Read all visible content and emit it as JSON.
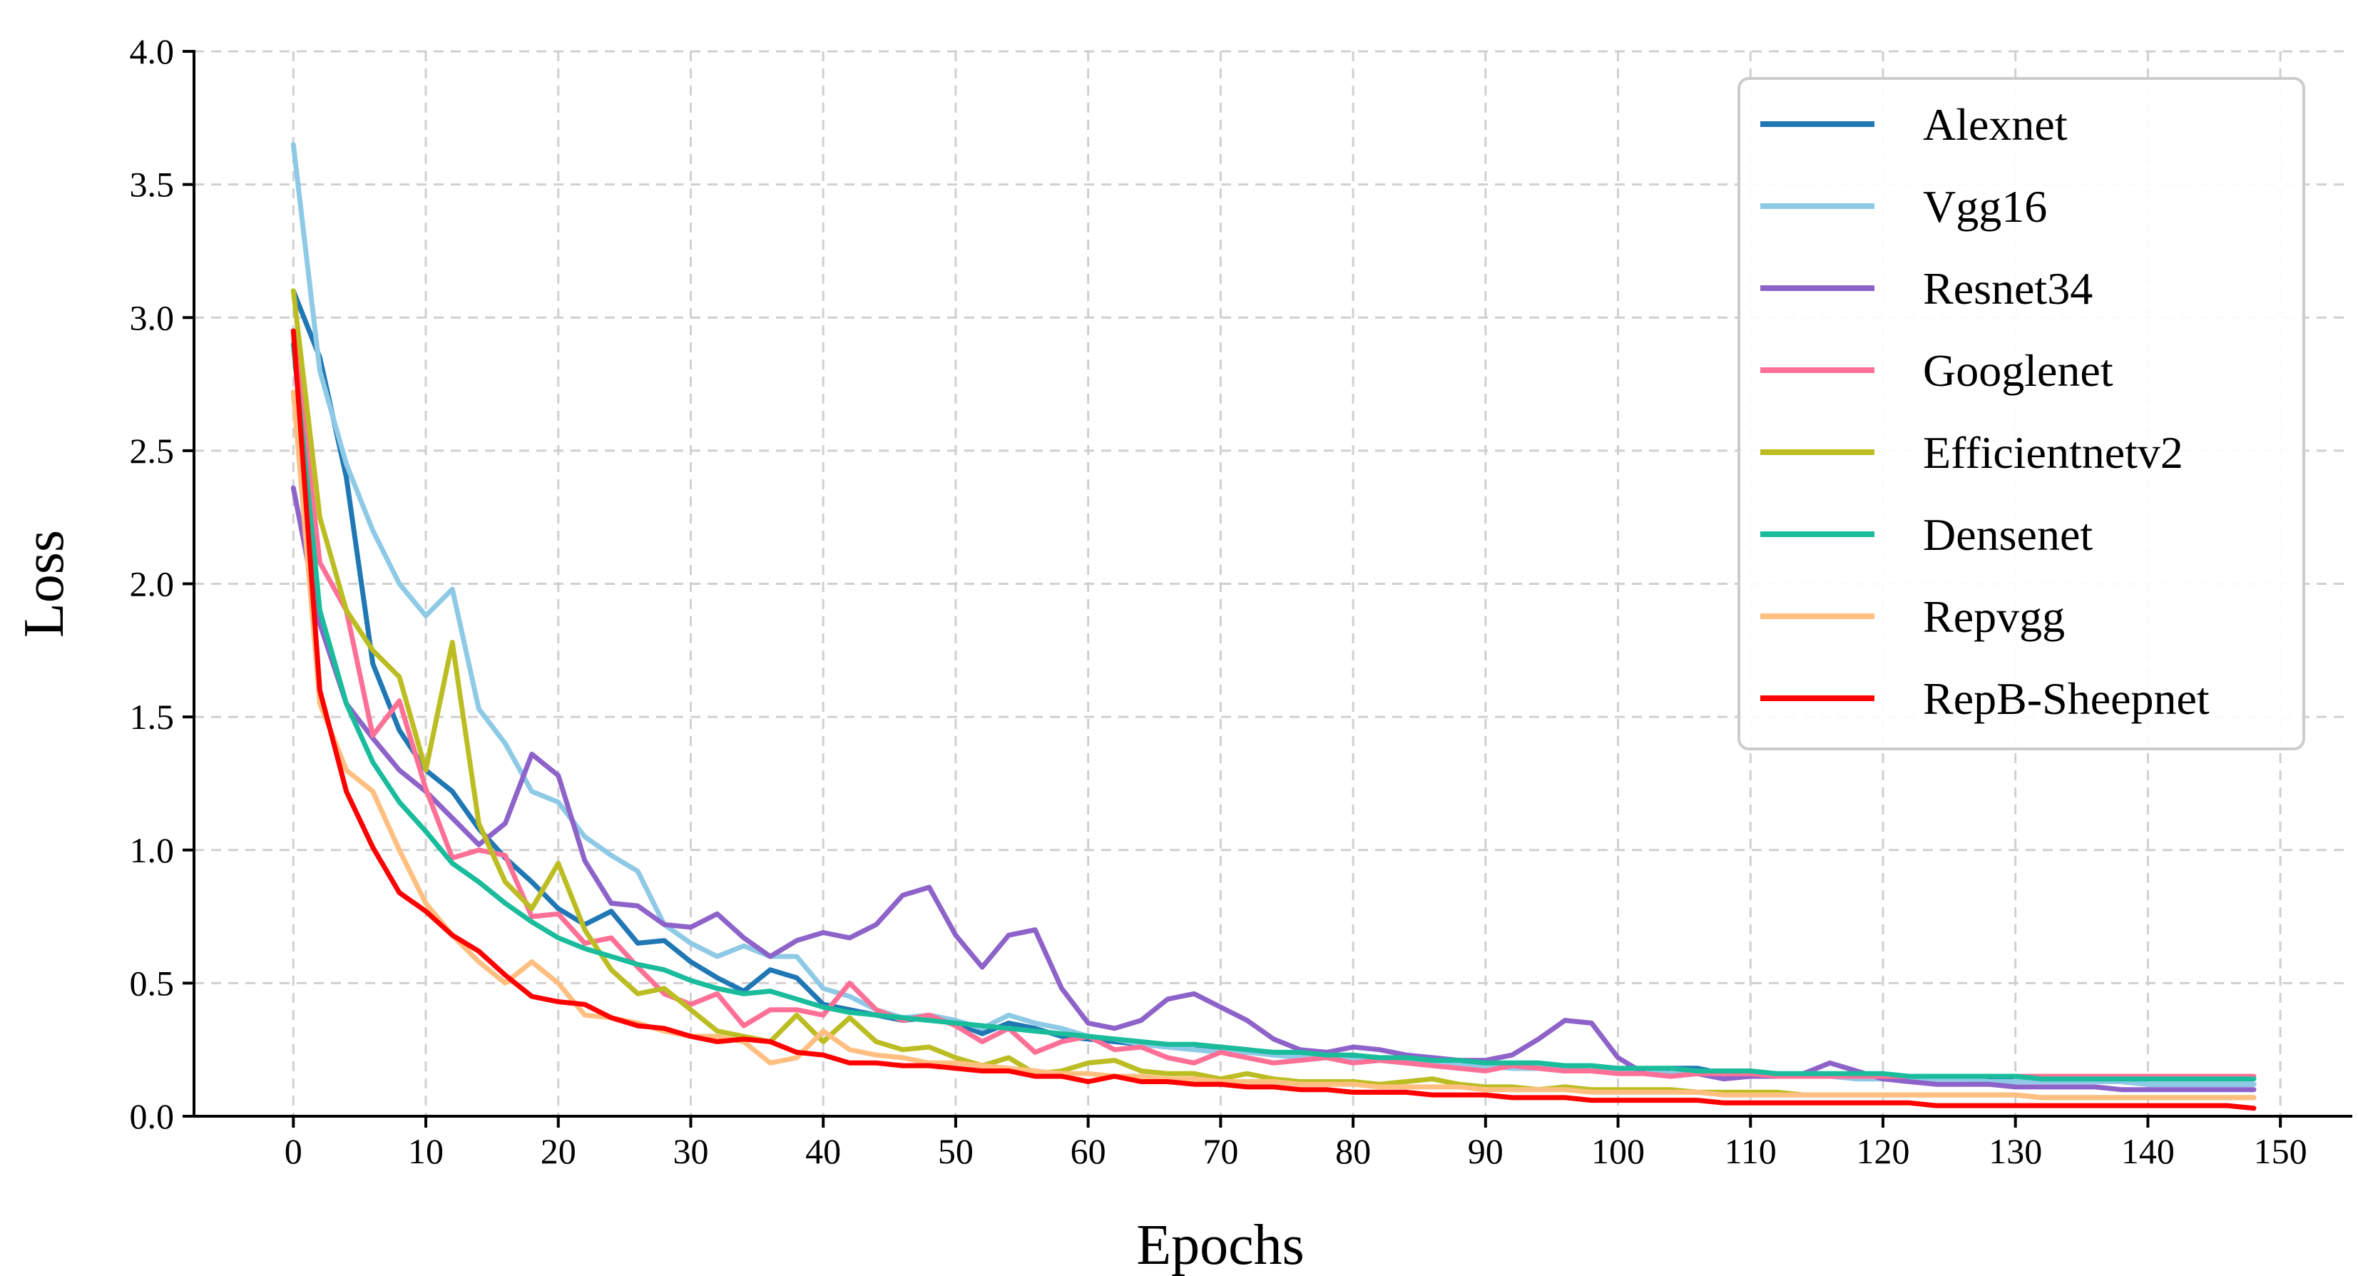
{
  "chart_data": {
    "type": "line",
    "title": "",
    "xlabel": "Epochs",
    "ylabel": "Loss",
    "xlim": [
      -7.5,
      155
    ],
    "ylim": [
      0,
      4
    ],
    "xticks": [
      0,
      10,
      20,
      30,
      40,
      50,
      60,
      70,
      80,
      90,
      100,
      110,
      120,
      130,
      140,
      150
    ],
    "yticks": [
      0.0,
      0.5,
      1.0,
      1.5,
      2.0,
      2.5,
      3.0,
      3.5,
      4.0
    ],
    "xtick_labels": [
      "0",
      "10",
      "20",
      "30",
      "40",
      "50",
      "60",
      "70",
      "80",
      "90",
      "100",
      "110",
      "120",
      "130",
      "140",
      "150"
    ],
    "ytick_labels": [
      "0.0",
      "0.5",
      "1.0",
      "1.5",
      "2.0",
      "2.5",
      "3.0",
      "3.5",
      "4.0"
    ],
    "grid": true,
    "legend_position": "top-right",
    "x": [
      0,
      2,
      4,
      6,
      8,
      10,
      12,
      14,
      16,
      18,
      20,
      22,
      24,
      26,
      28,
      30,
      32,
      34,
      36,
      38,
      40,
      42,
      44,
      46,
      48,
      50,
      52,
      54,
      56,
      58,
      60,
      62,
      64,
      66,
      68,
      70,
      72,
      74,
      76,
      78,
      80,
      82,
      84,
      86,
      88,
      90,
      92,
      94,
      96,
      98,
      100,
      102,
      104,
      106,
      108,
      110,
      112,
      114,
      116,
      118,
      120,
      122,
      124,
      126,
      128,
      130,
      132,
      134,
      136,
      138,
      140,
      142,
      144,
      146,
      148
    ],
    "series": [
      {
        "name": "Alexnet",
        "color": "#1f77b4",
        "values": [
          3.1,
          2.85,
          2.4,
          1.7,
          1.45,
          1.3,
          1.22,
          1.08,
          0.97,
          0.88,
          0.78,
          0.72,
          0.77,
          0.65,
          0.66,
          0.58,
          0.52,
          0.47,
          0.55,
          0.52,
          0.42,
          0.4,
          0.38,
          0.36,
          0.37,
          0.35,
          0.31,
          0.35,
          0.33,
          0.3,
          0.29,
          0.28,
          0.27,
          0.26,
          0.25,
          0.26,
          0.25,
          0.23,
          0.24,
          0.22,
          0.22,
          0.21,
          0.2,
          0.2,
          0.19,
          0.19,
          0.18,
          0.18,
          0.17,
          0.17,
          0.17,
          0.17,
          0.18,
          0.18,
          0.16,
          0.16,
          0.16,
          0.15,
          0.15,
          0.15,
          0.15,
          0.14,
          0.14,
          0.14,
          0.14,
          0.13,
          0.13,
          0.13,
          0.13,
          0.13,
          0.12,
          0.12,
          0.12,
          0.12,
          0.12
        ]
      },
      {
        "name": "Vgg16",
        "color": "#8ecae6",
        "values": [
          3.65,
          2.8,
          2.45,
          2.2,
          2.0,
          1.88,
          1.98,
          1.53,
          1.4,
          1.22,
          1.18,
          1.05,
          0.98,
          0.92,
          0.72,
          0.65,
          0.6,
          0.64,
          0.6,
          0.6,
          0.48,
          0.45,
          0.4,
          0.37,
          0.38,
          0.36,
          0.33,
          0.38,
          0.35,
          0.33,
          0.3,
          0.29,
          0.27,
          0.26,
          0.25,
          0.24,
          0.24,
          0.23,
          0.22,
          0.22,
          0.21,
          0.21,
          0.2,
          0.2,
          0.19,
          0.19,
          0.18,
          0.18,
          0.18,
          0.17,
          0.17,
          0.17,
          0.16,
          0.16,
          0.16,
          0.15,
          0.15,
          0.15,
          0.15,
          0.14,
          0.14,
          0.14,
          0.14,
          0.14,
          0.13,
          0.13,
          0.13,
          0.13,
          0.13,
          0.13,
          0.12,
          0.12,
          0.12,
          0.12,
          0.12
        ]
      },
      {
        "name": "Resnet34",
        "color": "#8e63c9",
        "values": [
          2.36,
          1.85,
          1.55,
          1.42,
          1.3,
          1.22,
          1.12,
          1.02,
          1.1,
          1.36,
          1.28,
          0.96,
          0.8,
          0.79,
          0.72,
          0.71,
          0.76,
          0.67,
          0.6,
          0.66,
          0.69,
          0.67,
          0.72,
          0.83,
          0.86,
          0.68,
          0.56,
          0.68,
          0.7,
          0.48,
          0.35,
          0.33,
          0.36,
          0.44,
          0.46,
          0.41,
          0.36,
          0.29,
          0.25,
          0.24,
          0.26,
          0.25,
          0.23,
          0.22,
          0.21,
          0.21,
          0.23,
          0.29,
          0.36,
          0.35,
          0.22,
          0.16,
          0.15,
          0.16,
          0.14,
          0.15,
          0.15,
          0.16,
          0.2,
          0.17,
          0.14,
          0.13,
          0.12,
          0.12,
          0.12,
          0.11,
          0.11,
          0.11,
          0.11,
          0.1,
          0.1,
          0.1,
          0.1,
          0.1,
          0.1
        ]
      },
      {
        "name": "Googlenet",
        "color": "#ff7096",
        "values": [
          2.95,
          2.08,
          1.9,
          1.43,
          1.56,
          1.23,
          0.97,
          1.0,
          0.98,
          0.75,
          0.76,
          0.65,
          0.67,
          0.56,
          0.46,
          0.42,
          0.46,
          0.34,
          0.4,
          0.4,
          0.38,
          0.5,
          0.4,
          0.36,
          0.38,
          0.34,
          0.28,
          0.33,
          0.24,
          0.28,
          0.3,
          0.25,
          0.26,
          0.22,
          0.2,
          0.24,
          0.22,
          0.2,
          0.21,
          0.22,
          0.2,
          0.21,
          0.2,
          0.19,
          0.18,
          0.17,
          0.19,
          0.18,
          0.17,
          0.17,
          0.16,
          0.16,
          0.15,
          0.16,
          0.16,
          0.16,
          0.15,
          0.15,
          0.15,
          0.15,
          0.15,
          0.15,
          0.15,
          0.15,
          0.15,
          0.15,
          0.15,
          0.15,
          0.15,
          0.15,
          0.15,
          0.15,
          0.15,
          0.15,
          0.15
        ]
      },
      {
        "name": "Efficientnetv2",
        "color": "#bcbd22",
        "values": [
          3.1,
          2.25,
          1.9,
          1.75,
          1.65,
          1.3,
          1.78,
          1.1,
          0.88,
          0.78,
          0.95,
          0.7,
          0.55,
          0.46,
          0.48,
          0.4,
          0.32,
          0.3,
          0.28,
          0.38,
          0.28,
          0.37,
          0.28,
          0.25,
          0.26,
          0.22,
          0.19,
          0.22,
          0.16,
          0.17,
          0.2,
          0.21,
          0.17,
          0.16,
          0.16,
          0.14,
          0.16,
          0.14,
          0.13,
          0.13,
          0.13,
          0.12,
          0.13,
          0.14,
          0.12,
          0.11,
          0.11,
          0.1,
          0.11,
          0.1,
          0.1,
          0.1,
          0.1,
          0.09,
          0.09,
          0.09,
          0.09,
          0.08,
          0.08,
          0.08,
          0.08,
          0.08,
          0.08,
          0.08,
          0.08,
          0.08,
          0.07,
          0.07,
          0.07,
          0.07,
          0.07,
          0.07,
          0.07,
          0.07,
          0.07
        ]
      },
      {
        "name": "Densenet",
        "color": "#1abc9c",
        "values": [
          2.9,
          1.9,
          1.55,
          1.33,
          1.18,
          1.07,
          0.95,
          0.88,
          0.8,
          0.73,
          0.67,
          0.63,
          0.6,
          0.57,
          0.55,
          0.51,
          0.48,
          0.46,
          0.47,
          0.44,
          0.41,
          0.39,
          0.38,
          0.37,
          0.36,
          0.35,
          0.34,
          0.33,
          0.32,
          0.31,
          0.3,
          0.29,
          0.28,
          0.27,
          0.27,
          0.26,
          0.25,
          0.24,
          0.24,
          0.23,
          0.23,
          0.22,
          0.22,
          0.21,
          0.21,
          0.2,
          0.2,
          0.2,
          0.19,
          0.19,
          0.18,
          0.18,
          0.18,
          0.17,
          0.17,
          0.17,
          0.16,
          0.16,
          0.16,
          0.16,
          0.16,
          0.15,
          0.15,
          0.15,
          0.15,
          0.15,
          0.14,
          0.14,
          0.14,
          0.14,
          0.14,
          0.14,
          0.14,
          0.14,
          0.14
        ]
      },
      {
        "name": "Repvgg",
        "color": "#ffbf80",
        "values": [
          2.72,
          1.55,
          1.3,
          1.22,
          1.0,
          0.8,
          0.68,
          0.58,
          0.5,
          0.58,
          0.5,
          0.38,
          0.37,
          0.35,
          0.32,
          0.3,
          0.3,
          0.28,
          0.2,
          0.22,
          0.32,
          0.25,
          0.23,
          0.22,
          0.2,
          0.2,
          0.19,
          0.18,
          0.17,
          0.16,
          0.16,
          0.15,
          0.15,
          0.14,
          0.14,
          0.13,
          0.13,
          0.13,
          0.12,
          0.12,
          0.12,
          0.11,
          0.11,
          0.11,
          0.11,
          0.1,
          0.1,
          0.1,
          0.1,
          0.09,
          0.09,
          0.09,
          0.09,
          0.09,
          0.08,
          0.08,
          0.08,
          0.08,
          0.08,
          0.08,
          0.08,
          0.08,
          0.08,
          0.08,
          0.08,
          0.08,
          0.07,
          0.07,
          0.07,
          0.07,
          0.07,
          0.07,
          0.07,
          0.07,
          0.07
        ]
      },
      {
        "name": "RepB-Sheepnet",
        "color": "#ff0000",
        "values": [
          2.95,
          1.6,
          1.22,
          1.01,
          0.84,
          0.77,
          0.68,
          0.62,
          0.53,
          0.45,
          0.43,
          0.42,
          0.37,
          0.34,
          0.33,
          0.3,
          0.28,
          0.29,
          0.28,
          0.24,
          0.23,
          0.2,
          0.2,
          0.19,
          0.19,
          0.18,
          0.17,
          0.17,
          0.15,
          0.15,
          0.13,
          0.15,
          0.13,
          0.13,
          0.12,
          0.12,
          0.11,
          0.11,
          0.1,
          0.1,
          0.09,
          0.09,
          0.09,
          0.08,
          0.08,
          0.08,
          0.07,
          0.07,
          0.07,
          0.06,
          0.06,
          0.06,
          0.06,
          0.06,
          0.05,
          0.05,
          0.05,
          0.05,
          0.05,
          0.05,
          0.05,
          0.05,
          0.04,
          0.04,
          0.04,
          0.04,
          0.04,
          0.04,
          0.04,
          0.04,
          0.04,
          0.04,
          0.04,
          0.04,
          0.03
        ]
      }
    ]
  }
}
